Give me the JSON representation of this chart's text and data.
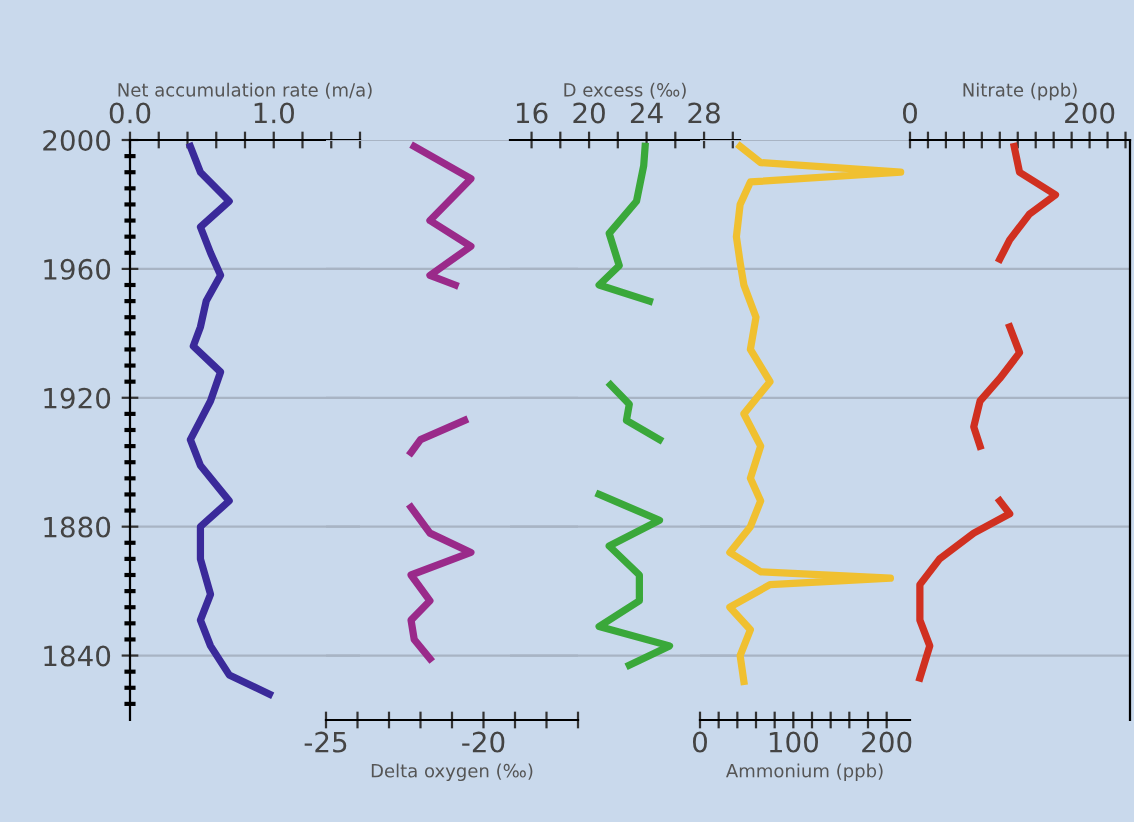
{
  "chart_data": [
    {
      "type": "line",
      "xlabel": "Net accumulation rate (m/a)",
      "xlim": [
        0,
        1.6
      ],
      "xticks": [
        {
          "value": 0,
          "label": "0.0"
        },
        {
          "value": 0.2,
          "label": null
        },
        {
          "value": 0.4,
          "label": null
        },
        {
          "value": 0.6,
          "label": null
        },
        {
          "value": 0.8,
          "label": null
        },
        {
          "value": 1.0,
          "label": "1.0"
        },
        {
          "value": 1.2,
          "label": null
        },
        {
          "value": 1.4,
          "label": null
        },
        {
          "value": 1.6,
          "label": null
        }
      ],
      "ylim": [
        1820,
        2000
      ],
      "yticks": [
        1840,
        1880,
        1920,
        1960,
        2000,
        {
          "value": 1825,
          "label": null
        },
        {
          "value": 1830,
          "label": null
        },
        {
          "value": 1835,
          "label": null
        },
        {
          "value": 1845,
          "label": null
        },
        {
          "value": 1850,
          "label": null
        },
        {
          "value": 1855,
          "label": null
        },
        {
          "value": 1860,
          "label": null
        },
        {
          "value": 1865,
          "label": null
        },
        {
          "value": 1870,
          "label": null
        },
        {
          "value": 1875,
          "label": null
        },
        {
          "value": 1885,
          "label": null
        },
        {
          "value": 1890,
          "label": null
        },
        {
          "value": 1895,
          "label": null
        },
        {
          "value": 1900,
          "label": null
        },
        {
          "value": 1905,
          "label": null
        },
        {
          "value": 1910,
          "label": null
        },
        {
          "value": 1915,
          "label": null
        },
        {
          "value": 1925,
          "label": null
        },
        {
          "value": 1930,
          "label": null
        },
        {
          "value": 1935,
          "label": null
        },
        {
          "value": 1940,
          "label": null
        },
        {
          "value": 1945,
          "label": null
        },
        {
          "value": 1950,
          "label": null
        },
        {
          "value": 1955,
          "label": null
        },
        {
          "value": 1965,
          "label": null
        },
        {
          "value": 1970,
          "label": null
        },
        {
          "value": 1975,
          "label": null
        },
        {
          "value": 1980,
          "label": null
        },
        {
          "value": 1985,
          "label": null
        },
        {
          "value": 1990,
          "label": null
        },
        {
          "value": 1995,
          "label": null
        }
      ],
      "grid": "y",
      "series": [
        {
          "color": "#3a2a9a",
          "x": [
            0.42,
            0.49,
            0.69,
            0.49,
            0.56,
            0.63,
            0.53,
            0.49,
            0.44,
            0.63,
            0.56,
            0.49,
            0.42,
            0.49,
            0.69,
            0.49,
            0.49,
            0.56,
            0.49,
            0.56,
            0.69,
            0.97
          ],
          "values": [
            1998,
            1990,
            1981,
            1973,
            1965,
            1958,
            1950,
            1942,
            1936,
            1928,
            1919,
            1913,
            1907,
            1899,
            1888,
            1880,
            1870,
            1859,
            1851,
            1843,
            1834,
            1828
          ]
        }
      ]
    },
    {
      "type": "line",
      "xlabel": "Delta oxygen (‰)",
      "xlim": [
        -25,
        -17
      ],
      "xticks": [
        -25,
        {
          "value": -24,
          "label": null
        },
        {
          "value": -23,
          "label": null
        },
        {
          "value": -22,
          "label": null
        },
        {
          "value": -21,
          "label": null
        },
        -20,
        {
          "value": -19,
          "label": null
        },
        {
          "value": -18,
          "label": null
        },
        {
          "value": -17,
          "label": null
        }
      ],
      "tick_labels": "x",
      "ylim": [
        1820,
        2000
      ],
      "yticks": [
        1840,
        1880,
        1920,
        1960,
        2000
      ],
      "grid": "y",
      "series": [
        {
          "color": "#9a2a8a",
          "x": [
            -22.2,
            -20.4,
            -21.7,
            -20.4,
            -21.7,
            -20.9,
            null,
            -20.6,
            -22.0,
            -22.3,
            null,
            -22.3,
            -21.7,
            -20.4,
            -22.3,
            -21.7,
            -22.3,
            -22.2,
            -21.7
          ],
          "values": [
            1998,
            1988,
            1975,
            1967,
            1958,
            1955,
            null,
            1913,
            1907,
            1903,
            null,
            1886,
            1878,
            1872,
            1865,
            1857,
            1851,
            1845,
            1839
          ]
        }
      ]
    },
    {
      "type": "line",
      "xlabel": "D excess (‰)",
      "xlim": [
        14.5,
        30.5
      ],
      "xticks": [
        {
          "value": 16,
          "label": "16"
        },
        {
          "value": 18,
          "label": null
        },
        {
          "value": 20,
          "label": "20"
        },
        {
          "value": 22,
          "label": null
        },
        {
          "value": 24,
          "label": "24"
        },
        {
          "value": 26,
          "label": null
        },
        {
          "value": 28,
          "label": "28"
        },
        {
          "value": 30,
          "label": null
        }
      ],
      "tick_labels": "x",
      "yticks": [
        1840,
        1880,
        1920,
        1960,
        2000
      ],
      "grid": "y",
      "series": [
        {
          "color": "#3aa83a",
          "x": [
            23.9,
            23.8,
            23.3,
            21.4,
            22.1,
            20.7,
            24.2,
            null,
            21.5,
            22.8,
            22.6,
            24.9,
            null,
            20.7,
            24.9,
            21.4,
            23.5,
            23.5,
            20.7,
            25.6,
            22.8
          ],
          "values": [
            1998,
            1992,
            1981,
            1971,
            1961,
            1955,
            1950,
            null,
            1924,
            1918,
            1913,
            1907,
            null,
            1890,
            1882,
            1874,
            1865,
            1857,
            1849,
            1843,
            1837
          ]
        }
      ]
    },
    {
      "type": "line",
      "xlabel": "Ammonium (ppb)",
      "xlim": [
        0,
        225
      ],
      "xticks": [
        0,
        {
          "value": 20,
          "label": null
        },
        {
          "value": 40,
          "label": null
        },
        {
          "value": 60,
          "label": null
        },
        {
          "value": 80,
          "label": null
        },
        100,
        {
          "value": 120,
          "label": null
        },
        {
          "value": 140,
          "label": null
        },
        {
          "value": 160,
          "label": null
        },
        {
          "value": 180,
          "label": null
        },
        200
      ],
      "tick_labels": "x",
      "ylim": [
        1820,
        2000
      ],
      "yticks": [
        1840,
        1880,
        1920,
        1960,
        2000
      ],
      "grid": "y",
      "series": [
        {
          "color": "#f0c030",
          "x": [
            43,
            65,
            215,
            54,
            43,
            39,
            43,
            47,
            60,
            54,
            75,
            47,
            65,
            54,
            65,
            54,
            32,
            65,
            204,
            75,
            32,
            54,
            43,
            47
          ],
          "values": [
            1998,
            1993,
            1990,
            1987,
            1980,
            1970,
            1962,
            1955,
            1945,
            1935,
            1925,
            1915,
            1905,
            1895,
            1888,
            1880,
            1872,
            1866,
            1864,
            1862,
            1855,
            1848,
            1840,
            1832
          ]
        }
      ]
    },
    {
      "type": "line",
      "xlabel": "Nitrate (ppb)",
      "xlim": [
        0,
        245
      ],
      "xticks": [
        0,
        {
          "value": 20,
          "label": null
        },
        {
          "value": 40,
          "label": null
        },
        {
          "value": 60,
          "label": null
        },
        {
          "value": 80,
          "label": null
        },
        {
          "value": 100,
          "label": null
        },
        {
          "value": 120,
          "label": null
        },
        {
          "value": 140,
          "label": null
        },
        {
          "value": 160,
          "label": null
        },
        {
          "value": 180,
          "label": null
        },
        200,
        {
          "value": 220,
          "label": null
        },
        {
          "value": 240,
          "label": null
        }
      ],
      "tick_labels": "x",
      "ylim": [
        1820,
        2000
      ],
      "yticks": [
        1840,
        1880,
        1920,
        1960,
        2000
      ],
      "grid": "y",
      "series": [
        {
          "color": "#d03020",
          "x": [
            116,
            122,
            162,
            133,
            111,
            100,
            null,
            111,
            122,
            100,
            78,
            71,
            78,
            null,
            100,
            111,
            71,
            33,
            11,
            11,
            22,
            11
          ],
          "values": [
            1998,
            1990,
            1983,
            1977,
            1969,
            1963,
            null,
            1942,
            1934,
            1926,
            1919,
            1911,
            1905,
            null,
            1888,
            1884,
            1878,
            1870,
            1862,
            1851,
            1843,
            1833
          ]
        }
      ]
    }
  ]
}
